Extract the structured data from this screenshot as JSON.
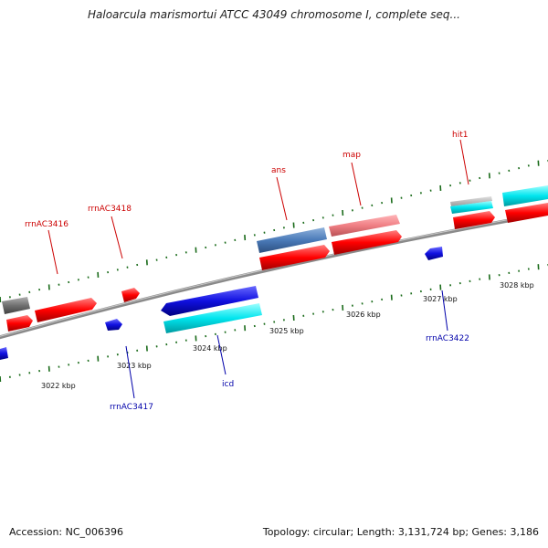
{
  "title": "Haloarcula marismortui ATCC 43049 chromosome I, complete seq...",
  "footer": {
    "accession": "Accession: NC_006396",
    "summary": "Topology: circular; Length: 3,131,724 bp; Genes: 3,186"
  },
  "ticks": [
    "3022 kbp",
    "3023 kbp",
    "3024 kbp",
    "3025 kbp",
    "3026 kbp",
    "3027 kbp",
    "3028 kbp"
  ],
  "features": {
    "top": [
      "rrnAC3416",
      "rrnAC3418",
      "ans",
      "map",
      "hit1"
    ],
    "bottom": [
      "rrnAC3417",
      "icd",
      "rrnAC3422"
    ]
  },
  "colors": {
    "backbone": "#8a8a8a",
    "tick": "#1a6b1a",
    "feature_red": "#ff0000",
    "feature_blue": "#1010e0",
    "feature_cyan": "#00e5ee",
    "feature_steelblue": "#4a7ab8",
    "feature_salmon": "#f07f84",
    "feature_grey": "#707070",
    "label_top": "#cc0000",
    "label_bottom": "#0000aa"
  }
}
